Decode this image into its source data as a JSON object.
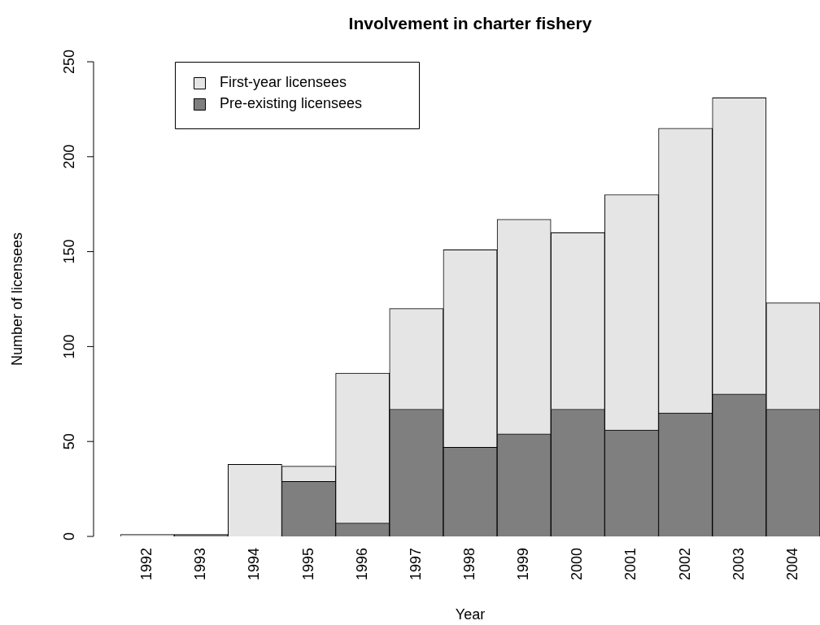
{
  "chart_data": {
    "type": "bar",
    "title": "Involvement in charter fishery",
    "xlabel": "Year",
    "ylabel": "Number of licensees",
    "categories": [
      "1992",
      "1993",
      "1994",
      "1995",
      "1996",
      "1997",
      "1998",
      "1999",
      "2000",
      "2001",
      "2002",
      "2003",
      "2004"
    ],
    "stacked": true,
    "series": [
      {
        "name": "Pre-existing licensees",
        "color": "#7f7f7f",
        "values": [
          0,
          1,
          0,
          29,
          7,
          67,
          47,
          54,
          67,
          56,
          65,
          75,
          67
        ]
      },
      {
        "name": "First-year licensees",
        "color": "#e5e5e5",
        "values": [
          1,
          0,
          38,
          8,
          79,
          53,
          104,
          113,
          93,
          124,
          150,
          156,
          56
        ]
      }
    ],
    "ylim": [
      0,
      250
    ],
    "yticks": [
      0,
      50,
      100,
      150,
      200,
      250
    ],
    "grid": false,
    "legend": "top left"
  }
}
